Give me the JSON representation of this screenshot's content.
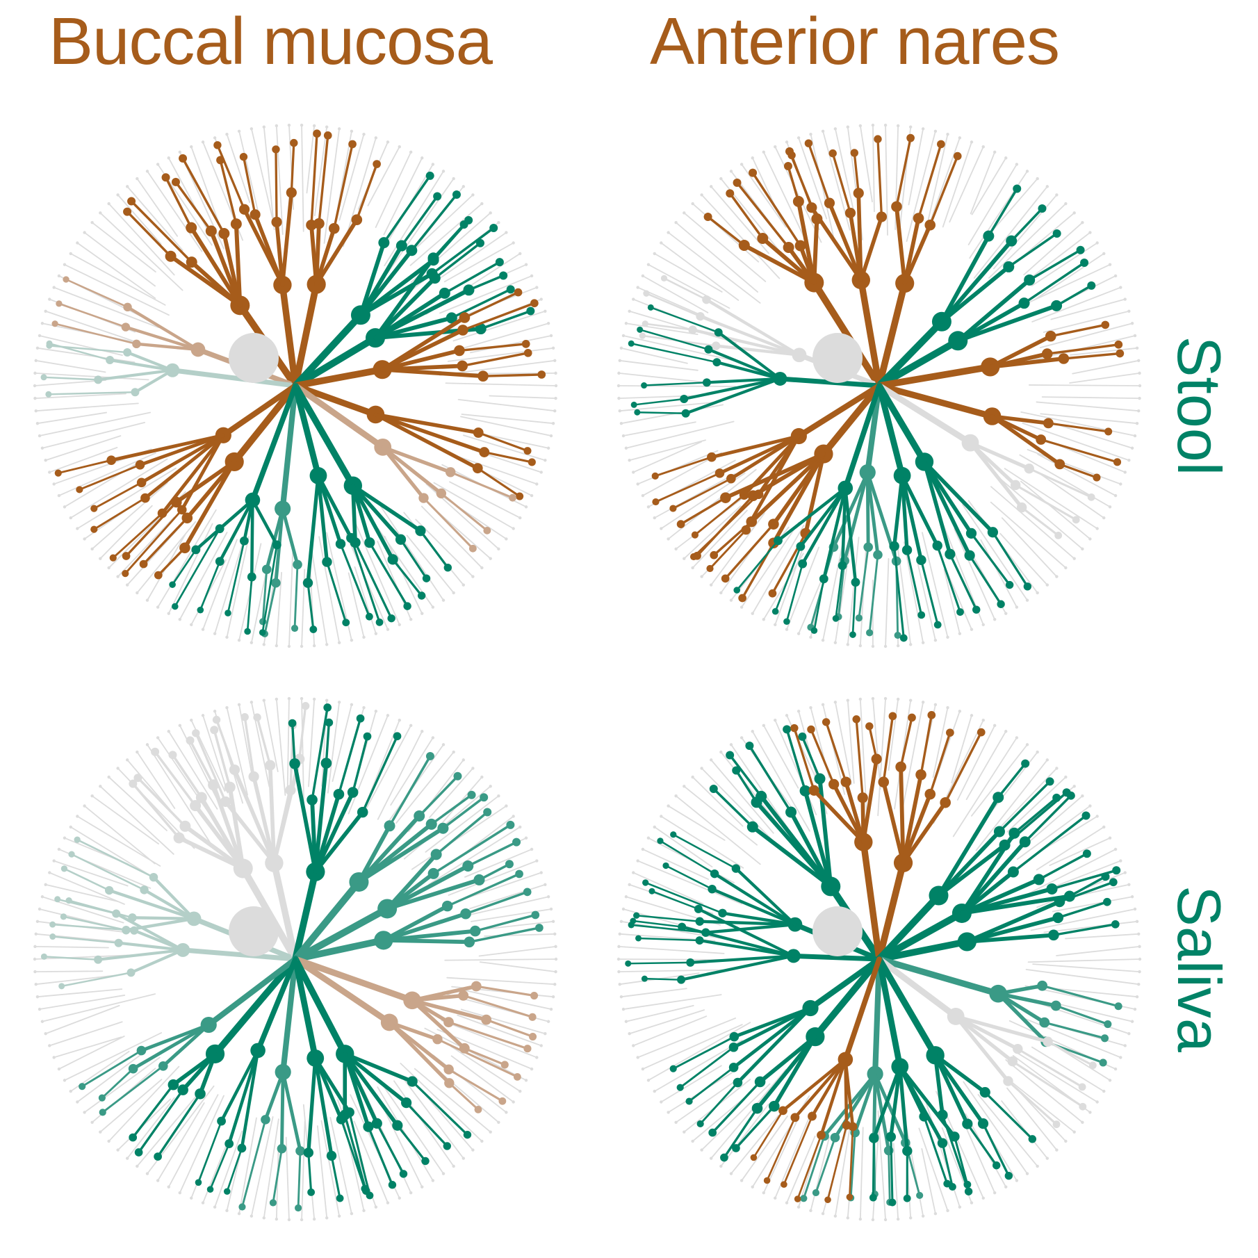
{
  "colors": {
    "group_a": "#a65c1b",
    "group_a_light": "#c9a58a",
    "group_b": "#008266",
    "group_b_mid": "#3a9a86",
    "group_b_light": "#b4cfc8",
    "neutral": "#dcdcdc"
  },
  "columns": [
    {
      "label": "Buccal mucosa"
    },
    {
      "label": "Anterior nares"
    }
  ],
  "rows": [
    {
      "label": "Stool"
    },
    {
      "label": "Saliva"
    }
  ],
  "panels": [
    {
      "column": "Buccal mucosa",
      "row": "Stool",
      "major_branch_groups": [
        "a",
        "a_light",
        "a",
        "b_light",
        "a",
        "b",
        "b",
        "a",
        "a",
        "a_light",
        "b_mid",
        "a",
        "b",
        "b",
        "a",
        "b"
      ]
    },
    {
      "column": "Anterior nares",
      "row": "Stool",
      "major_branch_groups": [
        "a",
        "neutral",
        "a",
        "b",
        "a",
        "b",
        "b",
        "a",
        "a",
        "neutral",
        "b_mid",
        "a",
        "b",
        "b",
        "a",
        "b"
      ]
    },
    {
      "column": "Buccal mucosa",
      "row": "Saliva",
      "major_branch_groups": [
        "neutral",
        "b_light",
        "neutral",
        "b_light",
        "b",
        "b_mid",
        "b_mid",
        "b_mid",
        "a_light",
        "a_light",
        "b_mid",
        "b",
        "b",
        "b",
        "b_mid",
        "b"
      ]
    },
    {
      "column": "Anterior nares",
      "row": "Saliva",
      "major_branch_groups": [
        "b",
        "b",
        "a",
        "b",
        "a",
        "b",
        "b",
        "b",
        "b_mid",
        "neutral",
        "b_mid",
        "b",
        "b",
        "b",
        "b",
        "a"
      ]
    }
  ]
}
